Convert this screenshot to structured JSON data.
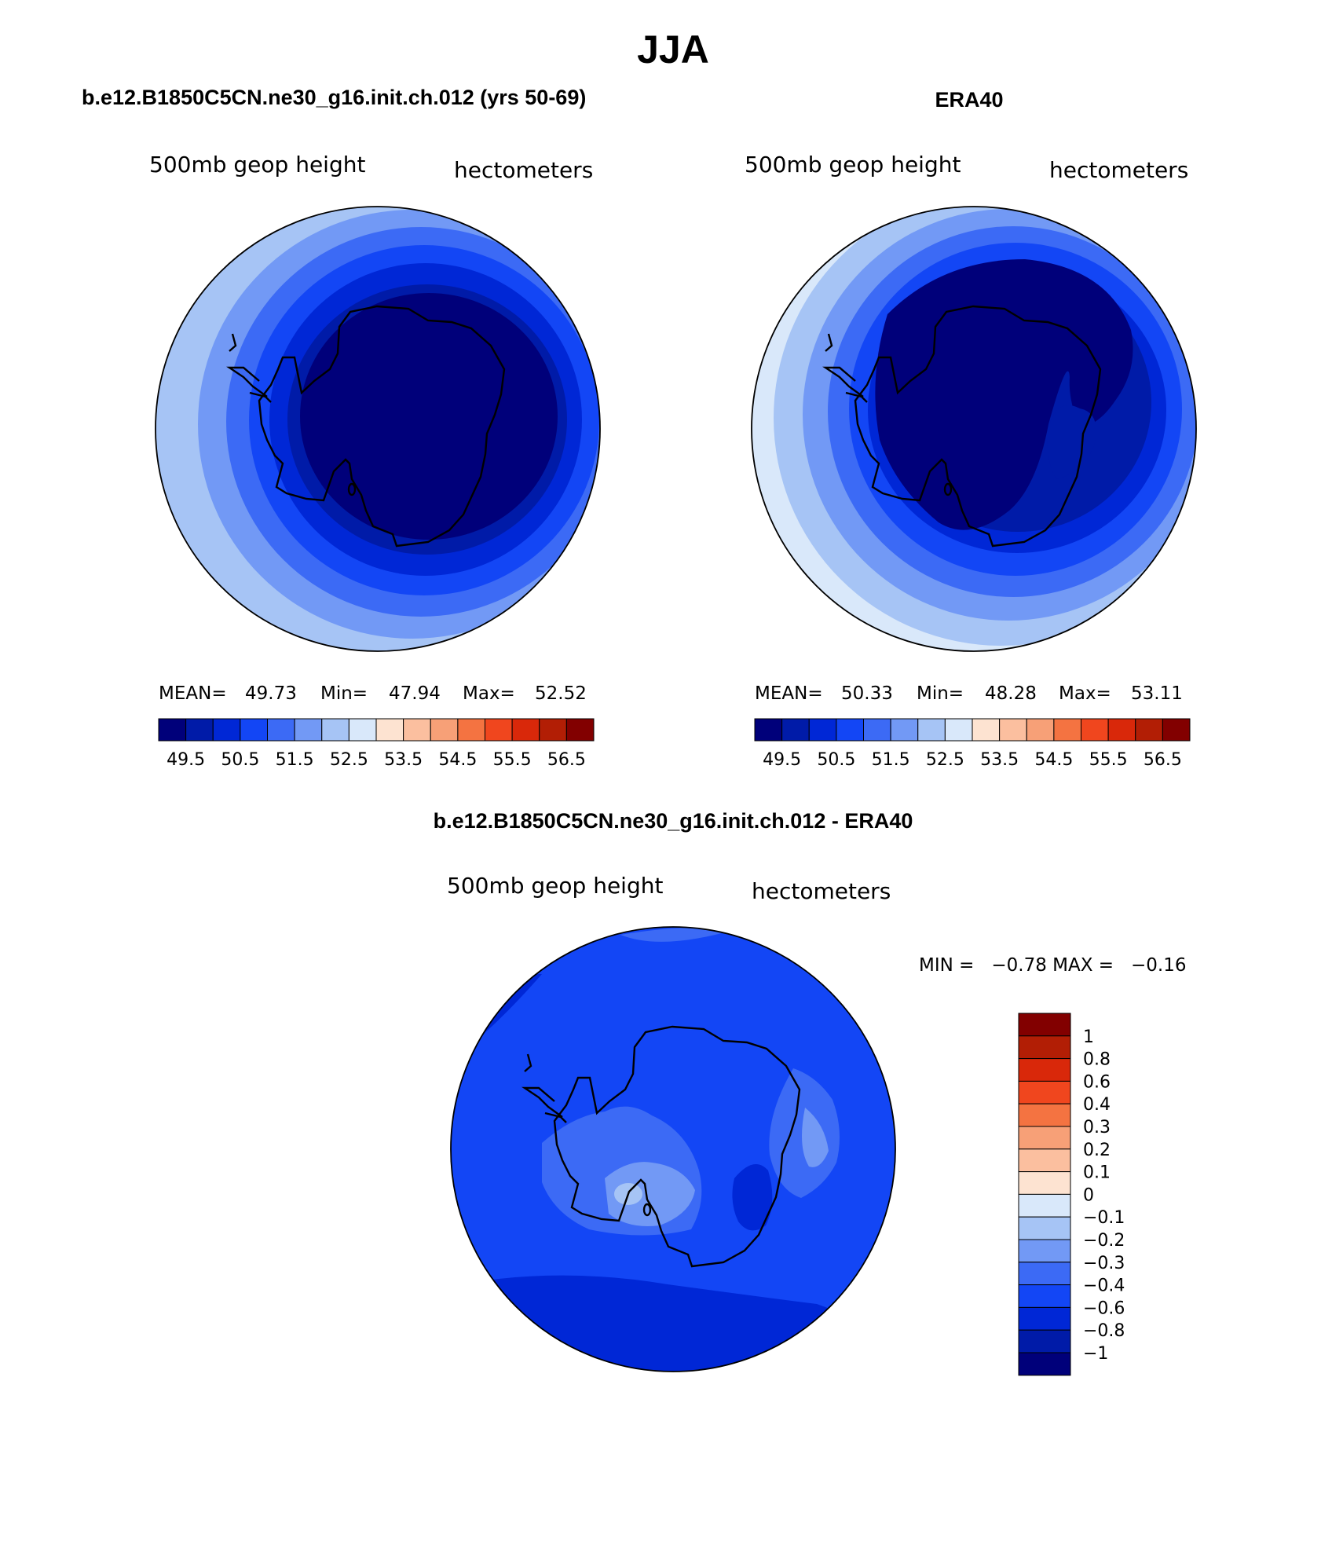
{
  "main_title": "JJA",
  "colors": {
    "abs_scale": [
      "#00007a",
      "#001ba8",
      "#0027d6",
      "#1346f5",
      "#3c6af5",
      "#7299f5",
      "#a6c4f5",
      "#d9e8fa",
      "#fde3d1",
      "#fbbf9f",
      "#f7a077",
      "#f47341",
      "#f0461e",
      "#d9280a",
      "#b21e05",
      "#820000"
    ],
    "diff_scale": [
      "#00007a",
      "#001ba8",
      "#0027d6",
      "#1346f5",
      "#3c6af5",
      "#7299f5",
      "#a6c4f5",
      "#d9e8fa",
      "#fde3d1",
      "#fbbf9f",
      "#f7a077",
      "#f47341",
      "#f0461e",
      "#d9280a",
      "#b21e05",
      "#820000"
    ]
  },
  "panels": [
    {
      "title": "b.e12.B1850C5CN.ne30_g16.init.ch.012 (yrs 50-69)",
      "variable": "500mb geop height",
      "units": "hectometers",
      "stats": {
        "mean_label": "MEAN=",
        "mean": "49.73",
        "min_label": "Min=",
        "min": "47.94",
        "max_label": "Max=",
        "max": "52.52"
      }
    },
    {
      "title": "ERA40",
      "variable": "500mb geop height",
      "units": "hectometers",
      "stats": {
        "mean_label": "MEAN=",
        "mean": "50.33",
        "min_label": "Min=",
        "min": "48.28",
        "max_label": "Max=",
        "max": "53.11"
      }
    }
  ],
  "abs_colorbar_ticks": [
    "49.5",
    "50.5",
    "51.5",
    "52.5",
    "53.5",
    "54.5",
    "55.5",
    "56.5"
  ],
  "diff_panel": {
    "title": "b.e12.B1850C5CN.ne30_g16.init.ch.012 - ERA40",
    "variable": "500mb geop height",
    "units": "hectometers",
    "minmax": "MIN =   −0.78 MAX =   −0.16"
  },
  "diff_colorbar_ticks": [
    "1",
    "0.8",
    "0.6",
    "0.4",
    "0.3",
    "0.2",
    "0.1",
    "0",
    "−0.1",
    "−0.2",
    "−0.3",
    "−0.4",
    "−0.6",
    "−0.8",
    "−1"
  ]
}
